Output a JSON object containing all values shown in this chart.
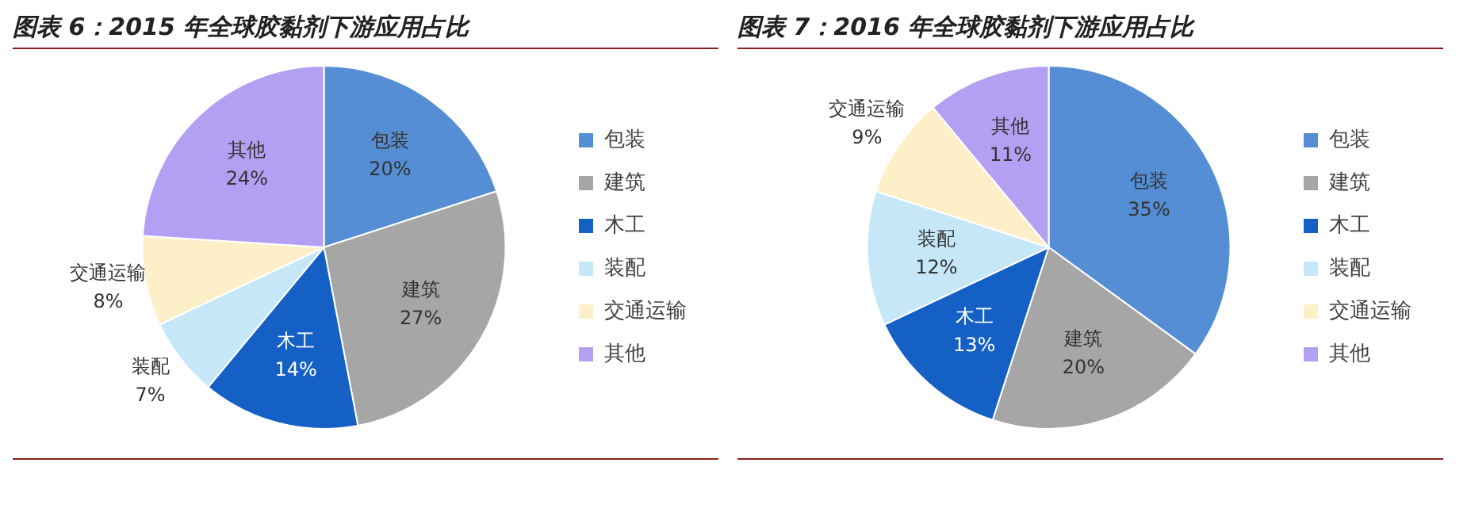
{
  "chart_data": [
    {
      "type": "pie",
      "title": "图表 6：2015 年全球胶黏剂下游应用占比",
      "categories": [
        "包装",
        "建筑",
        "木工",
        "装配",
        "交通运输",
        "其他"
      ],
      "values": [
        20,
        27,
        14,
        7,
        8,
        24
      ],
      "value_labels": [
        "20%",
        "27%",
        "14%",
        "7%",
        "8%",
        "24%"
      ],
      "colors": [
        "#558ed5",
        "#a6a6a6",
        "#1560c4",
        "#c6e7f8",
        "#fdf0c9",
        "#b4a0f2"
      ],
      "legend": "right"
    },
    {
      "type": "pie",
      "title": "图表 7：2016 年全球胶黏剂下游应用占比",
      "categories": [
        "包装",
        "建筑",
        "木工",
        "装配",
        "交通运输",
        "其他"
      ],
      "values": [
        35,
        20,
        13,
        12,
        9,
        11
      ],
      "value_labels": [
        "35%",
        "20%",
        "13%",
        "12%",
        "9%",
        "11%"
      ],
      "colors": [
        "#558ed5",
        "#a6a6a6",
        "#1560c4",
        "#c6e7f8",
        "#fdf0c9",
        "#b4a0f2"
      ],
      "legend": "right"
    }
  ]
}
